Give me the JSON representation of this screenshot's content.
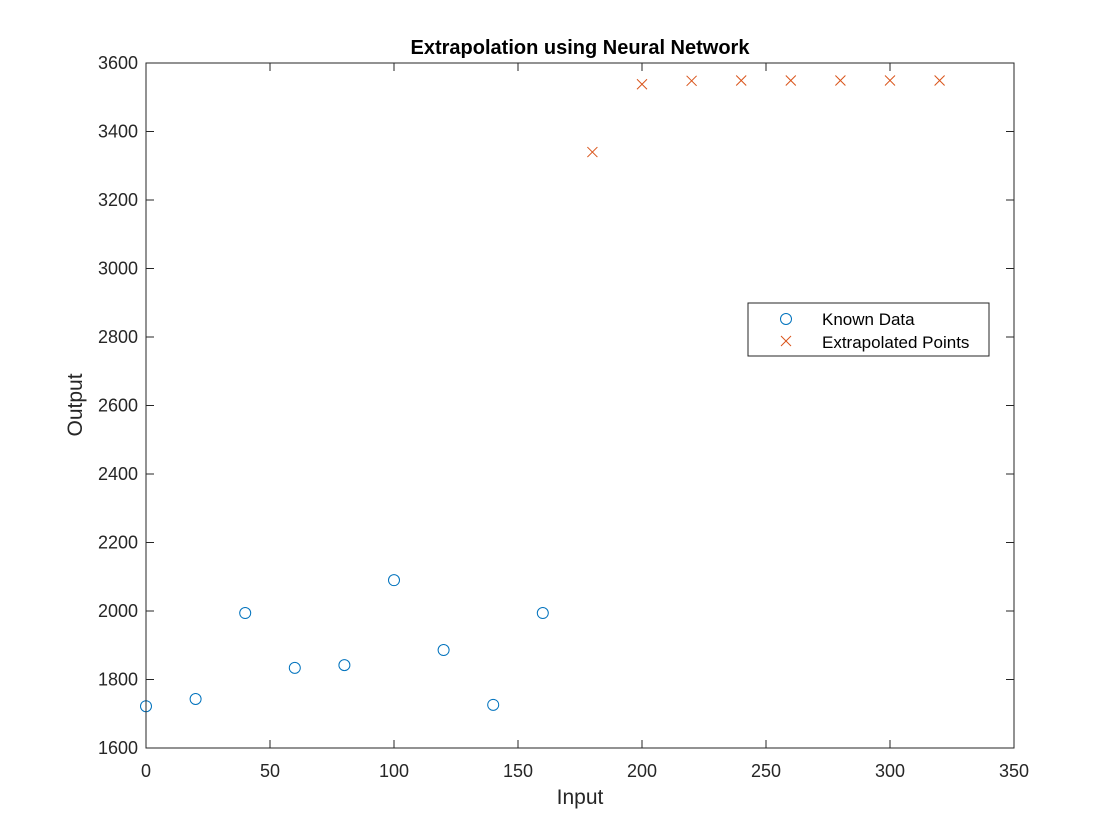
{
  "chart_data": {
    "type": "scatter",
    "title": "Extrapolation using Neural Network",
    "xlabel": "Input",
    "ylabel": "Output",
    "xlim": [
      0,
      350
    ],
    "ylim": [
      1600,
      3600
    ],
    "xticks": [
      0,
      50,
      100,
      150,
      200,
      250,
      300,
      350
    ],
    "yticks": [
      1600,
      1800,
      2000,
      2200,
      2400,
      2600,
      2800,
      3000,
      3200,
      3400,
      3600
    ],
    "grid": false,
    "legend_position": "right",
    "series": [
      {
        "name": "Known Data",
        "marker": "circle",
        "color": "#0072BD",
        "x": [
          0,
          20,
          40,
          60,
          80,
          100,
          120,
          140,
          160
        ],
        "y": [
          1722,
          1743,
          1994,
          1834,
          1842,
          2090,
          1886,
          1726,
          1994
        ]
      },
      {
        "name": "Extrapolated Points",
        "marker": "x",
        "color": "#D95319",
        "x": [
          180,
          200,
          220,
          240,
          260,
          280,
          300,
          320
        ],
        "y": [
          3340,
          3538,
          3548,
          3549,
          3549,
          3549,
          3549,
          3549
        ]
      }
    ]
  }
}
